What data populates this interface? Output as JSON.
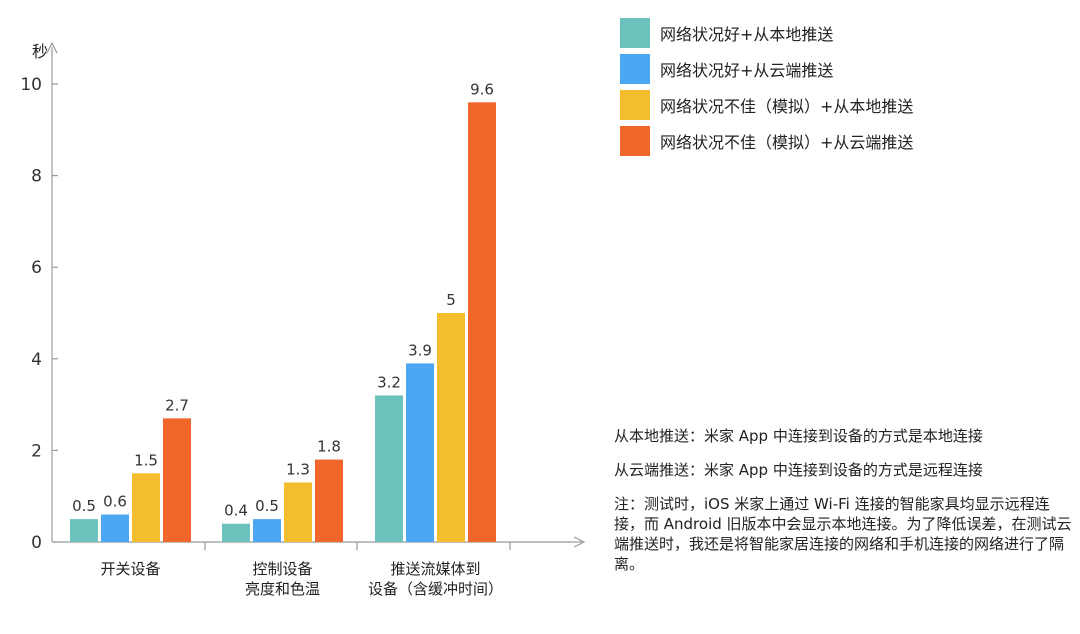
{
  "chart_data": {
    "type": "bar",
    "ylabel": "秒",
    "ylim": [
      0,
      10.5
    ],
    "yticks": [
      0,
      2,
      4,
      6,
      8,
      10
    ],
    "grid": false,
    "legend_position": "top-right",
    "categories": [
      {
        "lines": [
          "开关设备"
        ]
      },
      {
        "lines": [
          "控制设备",
          "亮度和色温"
        ]
      },
      {
        "lines": [
          "推送流媒体到",
          "设备（含缓冲时间）"
        ]
      }
    ],
    "series": [
      {
        "name": "网络状况好+从本地推送",
        "color": "#6cc3be",
        "values": [
          0.5,
          0.4,
          3.2
        ]
      },
      {
        "name": "网络状况好+从云端推送",
        "color": "#4ba7f2",
        "values": [
          0.6,
          0.5,
          3.9
        ]
      },
      {
        "name": "网络状况不佳（模拟）+从本地推送",
        "color": "#f3bd2d",
        "values": [
          1.5,
          1.3,
          5
        ]
      },
      {
        "name": "网络状况不佳（模拟）+从云端推送",
        "color": "#f1672b",
        "values": [
          2.7,
          1.8,
          9.6
        ]
      }
    ],
    "value_labels": [
      [
        "0.5",
        "0.4",
        "3.2"
      ],
      [
        "0.6",
        "0.5",
        "3.9"
      ],
      [
        "1.5",
        "1.3",
        "5"
      ],
      [
        "2.7",
        "1.8",
        "9.6"
      ]
    ]
  },
  "notes": {
    "local_def": "从本地推送：米家 App 中连接到设备的方式是本地连接",
    "cloud_def": "从云端推送：米家 App 中连接到设备的方式是远程连接",
    "footnote": "注：测试时，iOS 米家上通过 Wi-Fi 连接的智能家具均显示远程连接，而 Android 旧版本中会显示本地连接。为了降低误差，在测试云端推送时，我还是将智能家居连接的网络和手机连接的网络进行了隔离。"
  }
}
